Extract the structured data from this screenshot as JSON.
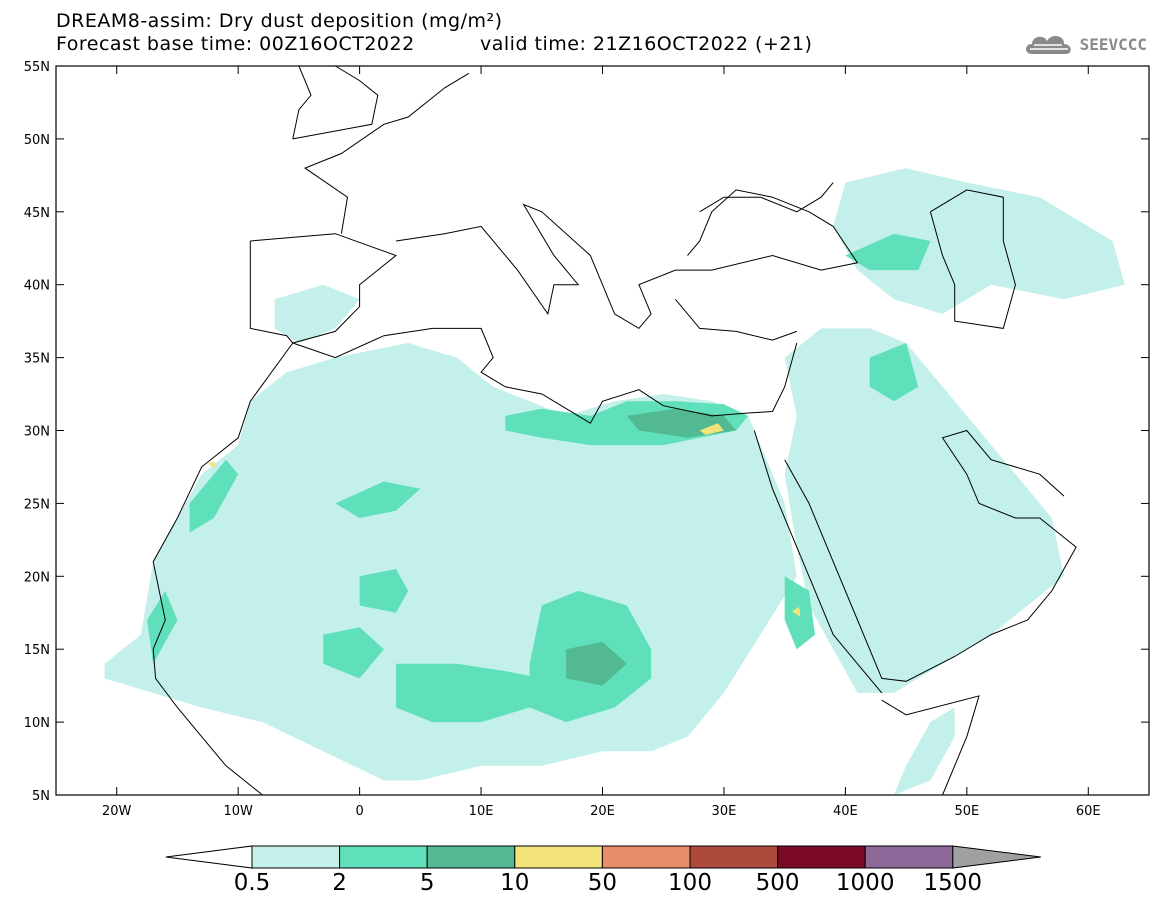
{
  "header": {
    "title_line1": "DREAM8-assim: Dry dust deposition (mg/m²)",
    "title_line2_left": "Forecast base time: 00Z16OCT2022",
    "title_line2_right": "valid time: 21Z16OCT2022 (+21)"
  },
  "logo": {
    "text": "SEEVCCC",
    "icon": "cloud-icon"
  },
  "map": {
    "lon_range": [
      -25,
      65
    ],
    "lat_range": [
      5,
      55
    ],
    "lon_ticks": [
      {
        "value": -20,
        "label": "20W"
      },
      {
        "value": -10,
        "label": "10W"
      },
      {
        "value": 0,
        "label": "0"
      },
      {
        "value": 10,
        "label": "10E"
      },
      {
        "value": 20,
        "label": "20E"
      },
      {
        "value": 30,
        "label": "30E"
      },
      {
        "value": 40,
        "label": "40E"
      },
      {
        "value": 50,
        "label": "50E"
      },
      {
        "value": 60,
        "label": "60E"
      }
    ],
    "lat_ticks": [
      {
        "value": 55,
        "label": "55N"
      },
      {
        "value": 50,
        "label": "50N"
      },
      {
        "value": 45,
        "label": "45N"
      },
      {
        "value": 40,
        "label": "40N"
      },
      {
        "value": 35,
        "label": "35N"
      },
      {
        "value": 30,
        "label": "30N"
      },
      {
        "value": 25,
        "label": "25N"
      },
      {
        "value": 20,
        "label": "20N"
      },
      {
        "value": 15,
        "label": "15N"
      },
      {
        "value": 10,
        "label": "10N"
      },
      {
        "value": 5,
        "label": "5N"
      }
    ]
  },
  "colorbar": {
    "labels": [
      "0.5",
      "2",
      "5",
      "10",
      "50",
      "100",
      "500",
      "1000",
      "1500"
    ],
    "colors": [
      "#c3f0ea",
      "#5fe0ba",
      "#52b992",
      "#f2e47a",
      "#e88d6a",
      "#ac4a3e",
      "#7a0a26",
      "#8e6a9a"
    ],
    "under_color": "#ffffff",
    "over_color": "#a0a0a0"
  }
}
